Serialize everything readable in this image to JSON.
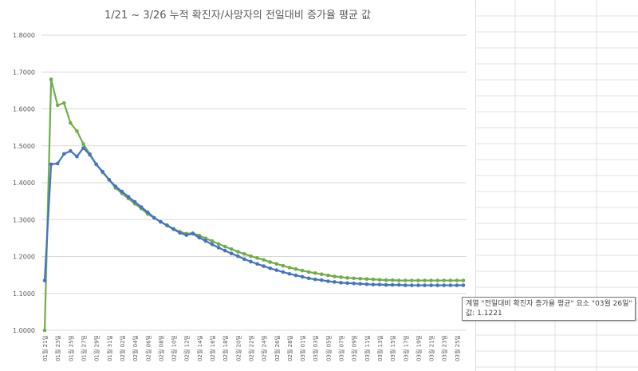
{
  "chart_data": {
    "type": "line",
    "title": "1/21 ~ 3/26 누적 확진자/사망자의 전일대비 증가율 평균 값",
    "xlabel": "",
    "ylabel": "",
    "ylim": [
      1.0,
      1.8
    ],
    "yticks": [
      "1.0000",
      "1.1000",
      "1.2000",
      "1.3000",
      "1.4000",
      "1.5000",
      "1.6000",
      "1.7000",
      "1.8000"
    ],
    "grid": true,
    "legend": "none",
    "categories": [
      "01월 21일",
      "01월 22일",
      "01월 23일",
      "01월 24일",
      "01월 25일",
      "01월 26일",
      "01월 27일",
      "01월 28일",
      "01월 29일",
      "01월 30일",
      "01월 31일",
      "02월 01일",
      "02월 02일",
      "02월 03일",
      "02월 04일",
      "02월 05일",
      "02월 06일",
      "02월 07일",
      "02월 08일",
      "02월 09일",
      "02월 10일",
      "02월 11일",
      "02월 12일",
      "02월 13일",
      "02월 14일",
      "02월 15일",
      "02월 16일",
      "02월 17일",
      "02월 18일",
      "02월 19일",
      "02월 20일",
      "02월 21일",
      "02월 22일",
      "02월 23일",
      "02월 24일",
      "02월 25일",
      "02월 26일",
      "02월 27일",
      "02월 28일",
      "02월 29일",
      "03월 01일",
      "03월 02일",
      "03월 03일",
      "03월 04일",
      "03월 05일",
      "03월 06일",
      "03월 07일",
      "03월 08일",
      "03월 09일",
      "03월 10일",
      "03월 11일",
      "03월 12일",
      "03월 13일",
      "03월 14일",
      "03월 15일",
      "03월 16일",
      "03월 17일",
      "03월 18일",
      "03월 19일",
      "03월 20일",
      "03월 21일",
      "03월 22일",
      "03월 23일",
      "03월 24일",
      "03월 25일",
      "03월 26일"
    ],
    "tick_labels": [
      "01월 21일",
      "01월 23일",
      "01월 25일",
      "01월 27일",
      "01월 29일",
      "01월 31일",
      "02월 02일",
      "02월 04일",
      "02월 06일",
      "02월 08일",
      "02월 10일",
      "02월 12일",
      "02월 14일",
      "02월 16일",
      "02월 18일",
      "02월 20일",
      "02월 22일",
      "02월 24일",
      "02월 26일",
      "02월 28일",
      "03월 01일",
      "03월 03일",
      "03월 05일",
      "03월 07일",
      "03월 09일",
      "03월 11일",
      "03월 13일",
      "03월 15일",
      "03월 17일",
      "03월 19일",
      "03월 21일",
      "03월 23일",
      "03월 25일"
    ],
    "series": [
      {
        "name": "",
        "color": "#4472c4",
        "values": [
          1.135,
          1.45,
          1.452,
          1.478,
          1.486,
          1.471,
          1.494,
          1.476,
          1.45,
          1.43,
          1.408,
          1.39,
          1.376,
          1.362,
          1.348,
          1.334,
          1.32,
          1.305,
          1.294,
          1.284,
          1.274,
          1.264,
          1.258,
          1.262,
          1.251,
          1.242,
          1.233,
          1.224,
          1.216,
          1.208,
          1.201,
          1.193,
          1.186,
          1.18,
          1.174,
          1.168,
          1.163,
          1.158,
          1.153,
          1.149,
          1.145,
          1.141,
          1.138,
          1.136,
          1.133,
          1.131,
          1.129,
          1.128,
          1.127,
          1.126,
          1.125,
          1.124,
          1.124,
          1.123,
          1.123,
          1.123,
          1.122,
          1.122,
          1.122,
          1.122,
          1.122,
          1.122,
          1.122,
          1.122,
          1.122,
          1.1221
        ]
      },
      {
        "name": "",
        "color": "#70ad47",
        "values": [
          1.0,
          1.68,
          1.61,
          1.616,
          1.562,
          1.54,
          1.505,
          1.478,
          1.45,
          1.428,
          1.408,
          1.386,
          1.371,
          1.357,
          1.343,
          1.33,
          1.315,
          1.305,
          1.294,
          1.285,
          1.275,
          1.267,
          1.262,
          1.263,
          1.257,
          1.249,
          1.242,
          1.234,
          1.227,
          1.22,
          1.213,
          1.207,
          1.201,
          1.196,
          1.191,
          1.185,
          1.18,
          1.175,
          1.17,
          1.166,
          1.162,
          1.158,
          1.155,
          1.152,
          1.149,
          1.146,
          1.144,
          1.142,
          1.141,
          1.14,
          1.139,
          1.138,
          1.137,
          1.136,
          1.136,
          1.135,
          1.135,
          1.135,
          1.135,
          1.135,
          1.135,
          1.135,
          1.135,
          1.135,
          1.135,
          1.135
        ]
      }
    ]
  },
  "tooltip": {
    "line1": "계열 \"전일대비 확진자 증가율 평균\" 요소 \"03월 26일\"",
    "line2": "값: 1.1221"
  }
}
